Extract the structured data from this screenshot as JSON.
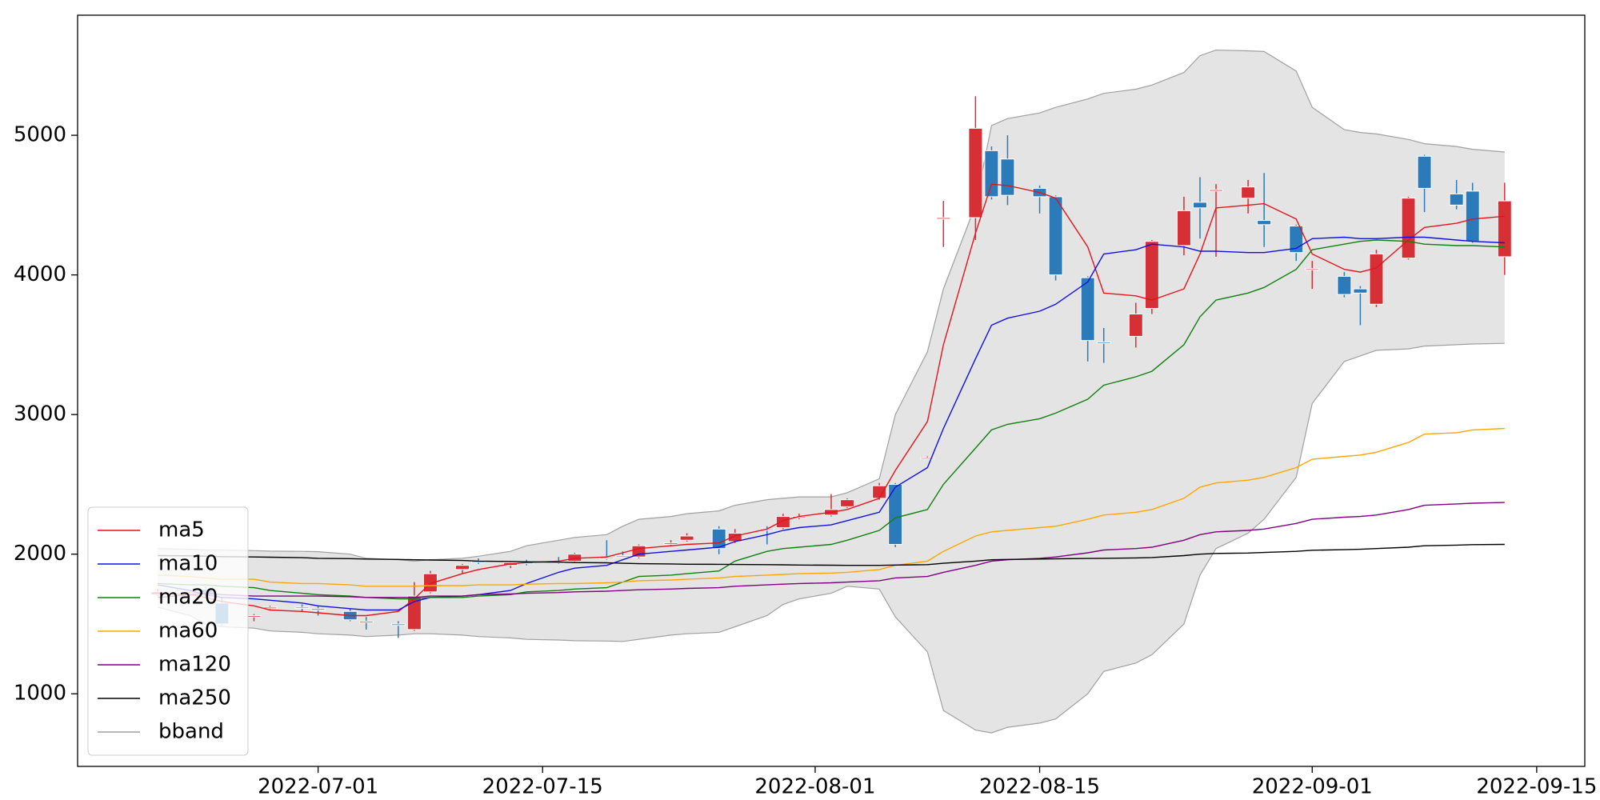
{
  "chart_data": {
    "type": "candlestick",
    "x": [
      "2022-06-21",
      "2022-06-23",
      "2022-06-24",
      "2022-06-25",
      "2022-06-27",
      "2022-06-28",
      "2022-06-30",
      "2022-07-01",
      "2022-07-03",
      "2022-07-04",
      "2022-07-06",
      "2022-07-07",
      "2022-07-08",
      "2022-07-10",
      "2022-07-11",
      "2022-07-13",
      "2022-07-14",
      "2022-07-16",
      "2022-07-17",
      "2022-07-19",
      "2022-07-20",
      "2022-07-21",
      "2022-07-23",
      "2022-07-24",
      "2022-07-26",
      "2022-07-27",
      "2022-07-29",
      "2022-07-30",
      "2022-07-31",
      "2022-08-02",
      "2022-08-03",
      "2022-08-05",
      "2022-08-06",
      "2022-08-08",
      "2022-08-09",
      "2022-08-11",
      "2022-08-12",
      "2022-08-13",
      "2022-08-15",
      "2022-08-16",
      "2022-08-18",
      "2022-08-19",
      "2022-08-21",
      "2022-08-22",
      "2022-08-24",
      "2022-08-25",
      "2022-08-26",
      "2022-08-28",
      "2022-08-29",
      "2022-08-31",
      "2022-09-01",
      "2022-09-03",
      "2022-09-04",
      "2022-09-05",
      "2022-09-07",
      "2022-09-08",
      "2022-09-10",
      "2022-09-11",
      "2022-09-13"
    ],
    "open": [
      1710,
      1720,
      1750,
      1650,
      1550,
      1610,
      1620,
      1610,
      1590,
      1520,
      1500,
      1460,
      1730,
      1890,
      1950,
      1920,
      1940,
      1945,
      1950,
      1975,
      1990,
      1980,
      2070,
      2100,
      2180,
      2090,
      2180,
      2190,
      2265,
      2280,
      2340,
      2400,
      2500,
      2690,
      4400,
      4410,
      4890,
      4830,
      4620,
      4560,
      3980,
      3520,
      3560,
      3760,
      4210,
      4520,
      4600,
      4550,
      4390,
      4350,
      4040,
      3990,
      3900,
      3790,
      4120,
      4850,
      4580,
      4600,
      4130
    ],
    "high": [
      1750,
      1740,
      1770,
      1690,
      1570,
      1630,
      1640,
      1630,
      1610,
      1550,
      1520,
      1800,
      1880,
      1930,
      1970,
      1950,
      1960,
      1980,
      2010,
      2100,
      2020,
      2070,
      2100,
      2150,
      2200,
      2180,
      2200,
      2290,
      2290,
      2430,
      2400,
      2510,
      2510,
      2700,
      4530,
      5280,
      4920,
      5000,
      4640,
      4570,
      3990,
      3620,
      3800,
      4250,
      4560,
      4700,
      4650,
      4680,
      4730,
      4360,
      4100,
      4020,
      3920,
      4180,
      4560,
      4860,
      4680,
      4660,
      4660
    ],
    "low": [
      1700,
      1700,
      1700,
      1490,
      1520,
      1600,
      1590,
      1560,
      1520,
      1460,
      1400,
      1450,
      1720,
      1860,
      1930,
      1900,
      1920,
      1930,
      1940,
      1960,
      1980,
      1970,
      2060,
      2090,
      2000,
      2080,
      2070,
      2180,
      2250,
      2270,
      2330,
      2390,
      2050,
      2680,
      4200,
      4250,
      4540,
      4500,
      4440,
      3960,
      3380,
      3370,
      3480,
      3720,
      4140,
      4260,
      4130,
      4440,
      4200,
      4100,
      3900,
      3840,
      3640,
      3770,
      4110,
      4450,
      4470,
      4230,
      4000
    ],
    "close": [
      1730,
      1730,
      1710,
      1500,
      1560,
      1620,
      1615,
      1600,
      1530,
      1510,
      1490,
      1700,
      1860,
      1920,
      1945,
      1940,
      1938,
      1940,
      2000,
      1970,
      1985,
      2060,
      2080,
      2130,
      2040,
      2150,
      2175,
      2270,
      2270,
      2320,
      2390,
      2490,
      2070,
      2690,
      4410,
      5050,
      4560,
      4570,
      4560,
      4000,
      3530,
      3510,
      3720,
      4240,
      4460,
      4480,
      4610,
      4630,
      4360,
      4160,
      4045,
      3860,
      3870,
      4150,
      4550,
      4620,
      4500,
      4240,
      4530
    ],
    "up_color": "#d62f35",
    "down_color": "#2b7bba",
    "series": [
      {
        "name": "ma5",
        "color": "#e8131a",
        "values": [
          1720,
          1710,
          1690,
          1660,
          1630,
          1600,
          1590,
          1580,
          1560,
          1560,
          1590,
          1680,
          1790,
          1860,
          1890,
          1930,
          1940,
          1950,
          1970,
          1980,
          2010,
          2040,
          2060,
          2070,
          2080,
          2130,
          2180,
          2240,
          2270,
          2300,
          2320,
          2400,
          2600,
          2950,
          3500,
          4300,
          4650,
          4640,
          4590,
          4550,
          4200,
          3870,
          3850,
          3820,
          3900,
          4150,
          4480,
          4500,
          4510,
          4400,
          4150,
          4040,
          4020,
          4050,
          4250,
          4340,
          4370,
          4400,
          4420
        ]
      },
      {
        "name": "ma10",
        "color": "#1010e0",
        "values": [
          1780,
          1740,
          1710,
          1690,
          1680,
          1670,
          1650,
          1630,
          1610,
          1600,
          1600,
          1660,
          1690,
          1700,
          1710,
          1740,
          1790,
          1870,
          1900,
          1920,
          1960,
          2000,
          2020,
          2030,
          2050,
          2090,
          2140,
          2170,
          2190,
          2210,
          2240,
          2300,
          2480,
          2620,
          2900,
          3400,
          3640,
          3690,
          3740,
          3790,
          3950,
          4150,
          4180,
          4220,
          4200,
          4170,
          4170,
          4160,
          4160,
          4190,
          4260,
          4270,
          4260,
          4260,
          4270,
          4270,
          4250,
          4240,
          4230
        ]
      },
      {
        "name": "ma20",
        "color": "#108010",
        "values": [
          1790,
          1780,
          1780,
          1770,
          1760,
          1740,
          1720,
          1710,
          1700,
          1690,
          1680,
          1680,
          1690,
          1690,
          1700,
          1710,
          1730,
          1740,
          1750,
          1760,
          1800,
          1840,
          1850,
          1860,
          1880,
          1950,
          2020,
          2040,
          2050,
          2070,
          2100,
          2170,
          2260,
          2320,
          2500,
          2760,
          2890,
          2930,
          2970,
          3010,
          3110,
          3210,
          3270,
          3310,
          3500,
          3700,
          3820,
          3870,
          3910,
          4040,
          4180,
          4220,
          4240,
          4250,
          4240,
          4220,
          4210,
          4210,
          4200
        ]
      },
      {
        "name": "ma60",
        "color": "#ffa500",
        "values": [
          1850,
          1840,
          1830,
          1820,
          1820,
          1800,
          1790,
          1790,
          1780,
          1770,
          1770,
          1770,
          1775,
          1775,
          1780,
          1780,
          1785,
          1790,
          1790,
          1795,
          1800,
          1810,
          1815,
          1820,
          1830,
          1840,
          1850,
          1855,
          1860,
          1865,
          1870,
          1890,
          1920,
          1950,
          2020,
          2130,
          2160,
          2170,
          2190,
          2200,
          2250,
          2280,
          2300,
          2320,
          2400,
          2480,
          2510,
          2530,
          2550,
          2620,
          2680,
          2700,
          2710,
          2730,
          2800,
          2860,
          2870,
          2890,
          2900
        ]
      },
      {
        "name": "ma120",
        "color": "#800080",
        "values": [
          1690,
          1710,
          1720,
          1710,
          1700,
          1700,
          1700,
          1700,
          1695,
          1690,
          1690,
          1690,
          1700,
          1700,
          1710,
          1715,
          1720,
          1725,
          1730,
          1735,
          1740,
          1745,
          1750,
          1755,
          1760,
          1770,
          1780,
          1785,
          1790,
          1795,
          1800,
          1810,
          1830,
          1840,
          1870,
          1920,
          1950,
          1960,
          1970,
          1980,
          2010,
          2030,
          2040,
          2050,
          2100,
          2140,
          2160,
          2170,
          2180,
          2220,
          2250,
          2265,
          2270,
          2280,
          2320,
          2350,
          2360,
          2365,
          2370
        ]
      },
      {
        "name": "ma250",
        "color": "#000000",
        "values": [
          1990,
          1988,
          1985,
          1982,
          1980,
          1978,
          1975,
          1970,
          1968,
          1965,
          1962,
          1960,
          1958,
          1955,
          1950,
          1948,
          1945,
          1943,
          1940,
          1938,
          1935,
          1932,
          1930,
          1928,
          1927,
          1926,
          1925,
          1924,
          1922,
          1921,
          1920,
          1920,
          1922,
          1925,
          1935,
          1950,
          1960,
          1962,
          1965,
          1967,
          1969,
          1970,
          1973,
          1976,
          1990,
          2000,
          2005,
          2008,
          2012,
          2020,
          2028,
          2032,
          2035,
          2040,
          2050,
          2060,
          2065,
          2068,
          2070
        ]
      }
    ],
    "band": {
      "name": "bband",
      "color": "#a0a0a0",
      "fill": "#e4e4e4",
      "upper": [
        2040,
        2035,
        2030,
        2030,
        2025,
        2022,
        2020,
        2018,
        2000,
        1970,
        1960,
        1950,
        1960,
        1970,
        1985,
        2020,
        2060,
        2100,
        2120,
        2140,
        2200,
        2250,
        2270,
        2290,
        2310,
        2350,
        2390,
        2400,
        2410,
        2410,
        2440,
        2540,
        3000,
        3450,
        3900,
        4500,
        5070,
        5120,
        5160,
        5200,
        5260,
        5300,
        5330,
        5360,
        5450,
        5570,
        5610,
        5605,
        5600,
        5460,
        5200,
        5040,
        5020,
        5010,
        4970,
        4940,
        4920,
        4900,
        4880
      ],
      "lower": [
        1620,
        1560,
        1500,
        1480,
        1470,
        1450,
        1440,
        1430,
        1420,
        1410,
        1420,
        1430,
        1430,
        1420,
        1410,
        1400,
        1390,
        1385,
        1380,
        1378,
        1375,
        1390,
        1420,
        1430,
        1440,
        1480,
        1560,
        1640,
        1680,
        1720,
        1770,
        1750,
        1550,
        1300,
        880,
        740,
        720,
        760,
        790,
        820,
        1000,
        1160,
        1220,
        1280,
        1500,
        1850,
        2040,
        2150,
        2250,
        2550,
        3080,
        3380,
        3420,
        3460,
        3470,
        3490,
        3500,
        3505,
        3510
      ]
    },
    "xlim": [
      "2022-06-16",
      "2022-09-18"
    ],
    "xticks": [
      "2022-07-01",
      "2022-07-15",
      "2022-08-01",
      "2022-08-15",
      "2022-09-01",
      "2022-09-15"
    ],
    "ylim": [
      480,
      5860
    ],
    "yticks": [
      1000,
      2000,
      3000,
      4000,
      5000
    ],
    "legend": "lower left"
  }
}
